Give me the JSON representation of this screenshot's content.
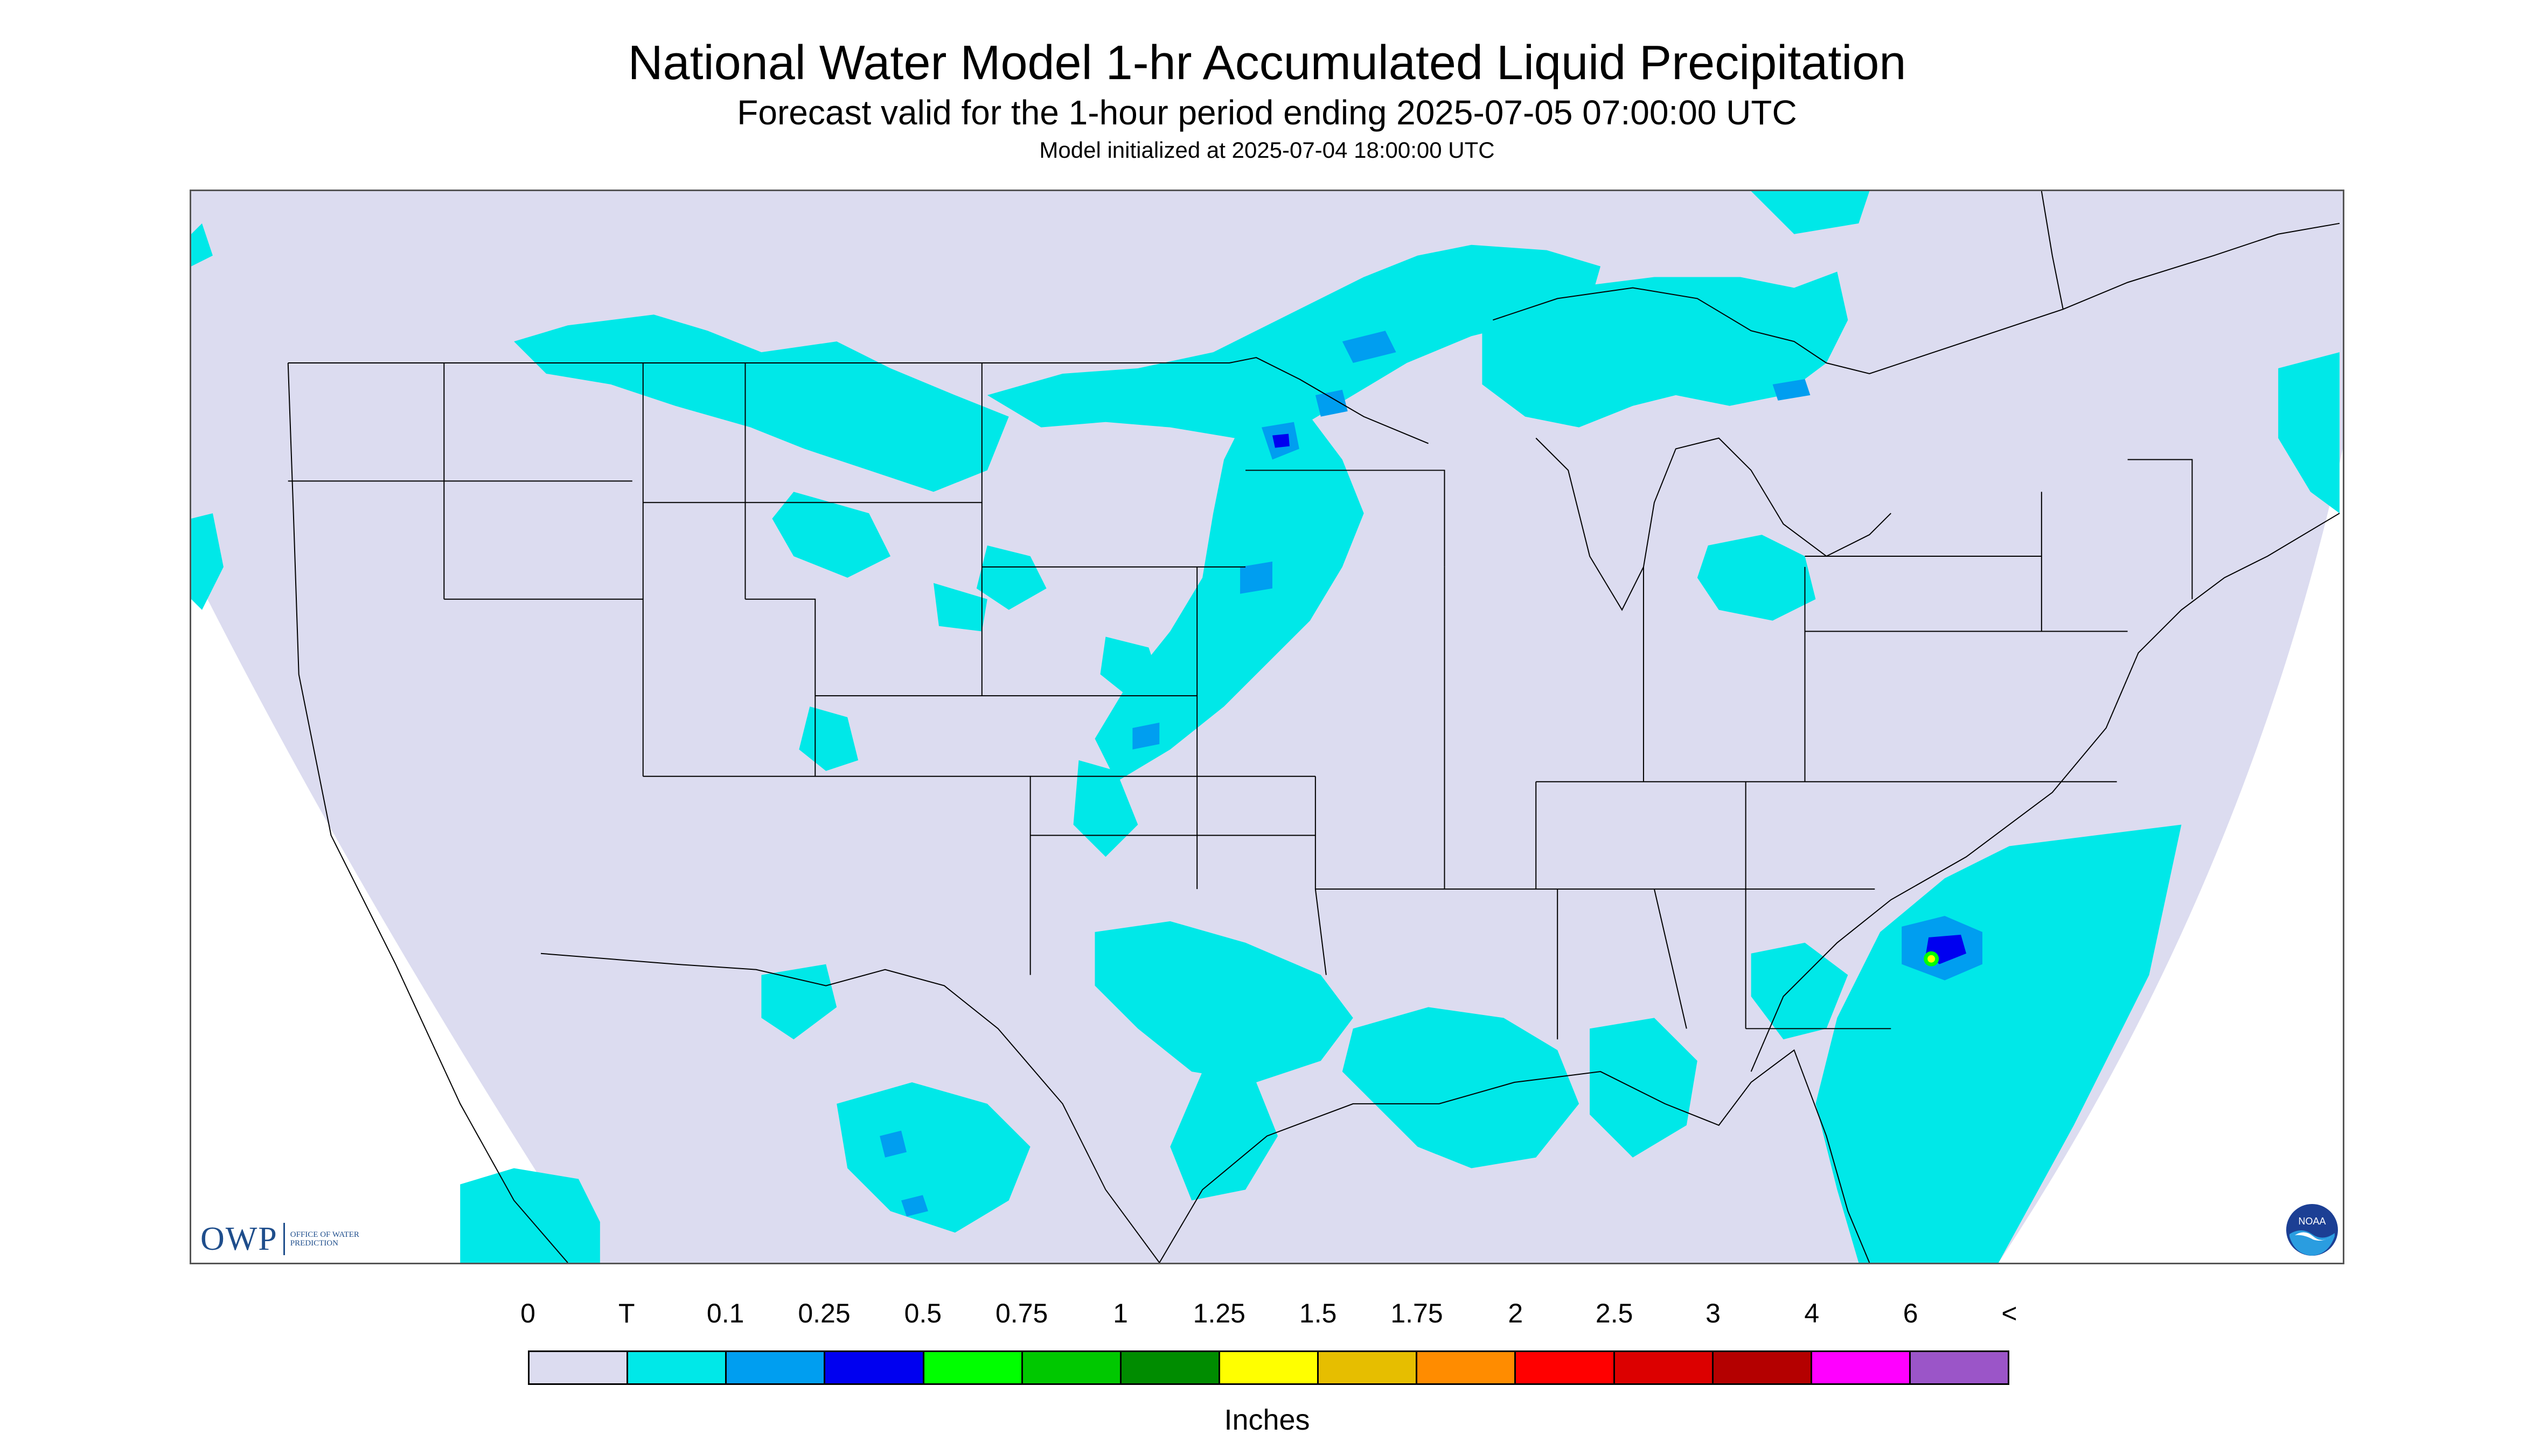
{
  "header": {
    "title": "National Water Model 1-hr Accumulated Liquid Precipitation",
    "subtitle": "Forecast valid for the 1-hour period ending 2025-07-05 07:00:00 UTC",
    "init_line": "Model initialized at 2025-07-04 18:00:00 UTC"
  },
  "logos": {
    "owp_text": "OWP",
    "owp_sub": "OFFICE OF WATER PREDICTION",
    "noaa_text": "NOAA"
  },
  "legend": {
    "units": "Inches",
    "tick_labels": [
      "0",
      "T",
      "0.1",
      "0.25",
      "0.5",
      "0.75",
      "1",
      "1.25",
      "1.5",
      "1.75",
      "2",
      "2.5",
      "3",
      "4",
      "6",
      "<"
    ],
    "colors": [
      "#dcdcf0",
      "#00e8e8",
      "#009ef0",
      "#0000f0",
      "#00ff00",
      "#00c800",
      "#008c00",
      "#ffff00",
      "#e6be00",
      "#ff8c00",
      "#ff0000",
      "#dc0000",
      "#b40000",
      "#ff00ff",
      "#9b55c8"
    ]
  },
  "map": {
    "background_color": "#dcdcf0",
    "outside_color": "#ffffff",
    "border_color": "#000000"
  }
}
